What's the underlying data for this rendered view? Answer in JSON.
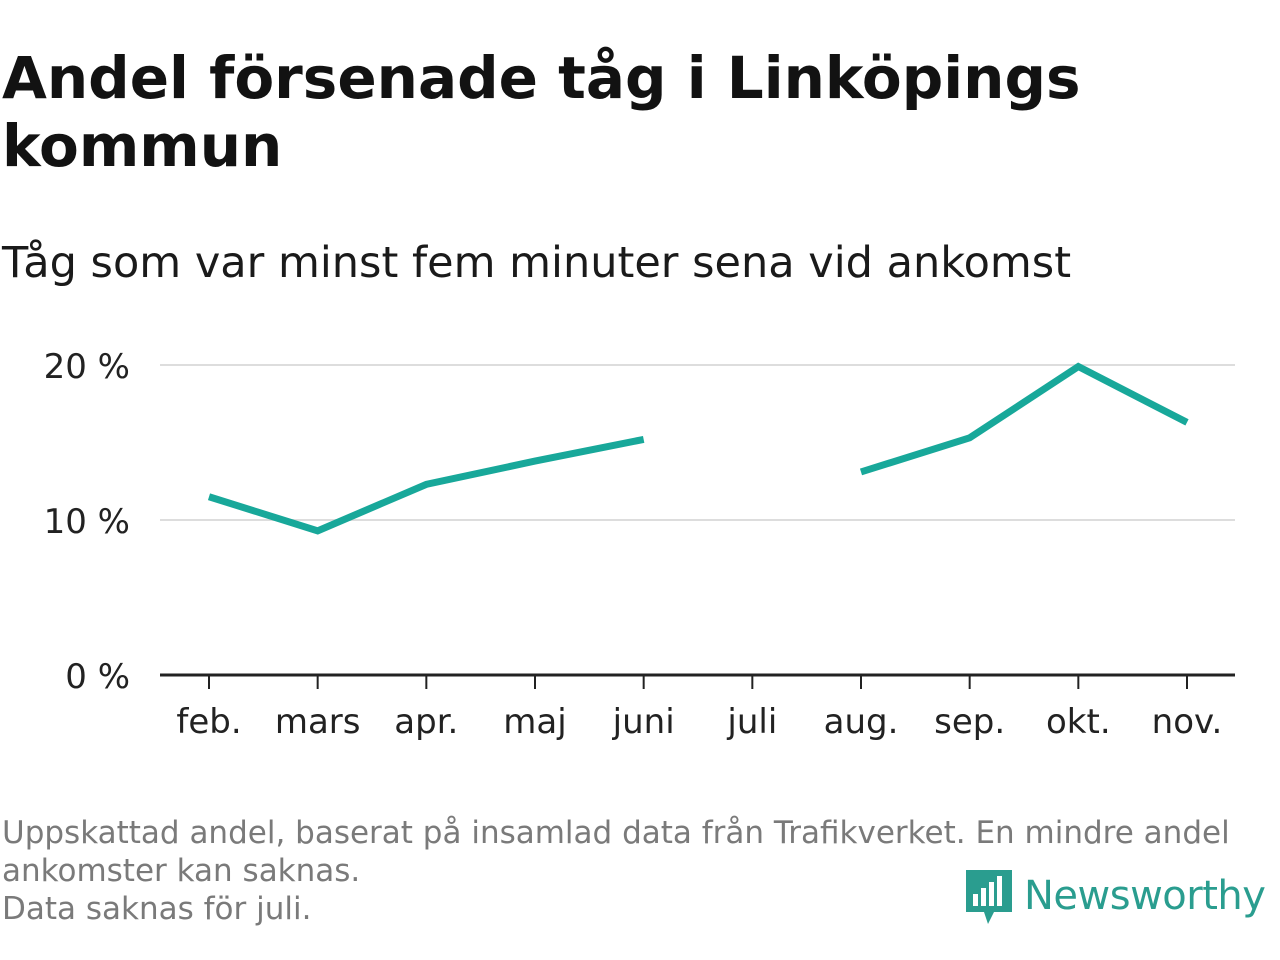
{
  "header": {
    "title": "Andel försenade tåg i Linköpings kommun",
    "subtitle": "Tåg som var minst fem minuter sena vid ankomst"
  },
  "chart_data": {
    "type": "line",
    "categories": [
      "feb.",
      "mars",
      "apr.",
      "maj",
      "juni",
      "juli",
      "aug.",
      "sep.",
      "okt.",
      "nov."
    ],
    "series": [
      {
        "values": [
          11.5,
          9.3,
          12.3,
          13.8,
          15.2,
          null,
          13.1,
          15.3,
          19.9,
          16.3
        ]
      }
    ],
    "yticks": [
      0,
      10,
      20
    ],
    "ytick_labels": [
      "0 %",
      "10 %",
      "20 %"
    ],
    "ylim": [
      0,
      20
    ],
    "grid": true,
    "legend": "none",
    "line_color": "#18a89a",
    "grid_color": "#dddddd",
    "axis_color": "#222222"
  },
  "footer": {
    "note_line1": "Uppskattad andel, baserat på insamlad data från Trafikverket. En mindre andel ankomster kan saknas.",
    "note_line2": "Data saknas för juli.",
    "brand": "Newsworthy",
    "brand_icon": "newsworthy-logo-icon",
    "brand_color": "#2a9d8f"
  }
}
